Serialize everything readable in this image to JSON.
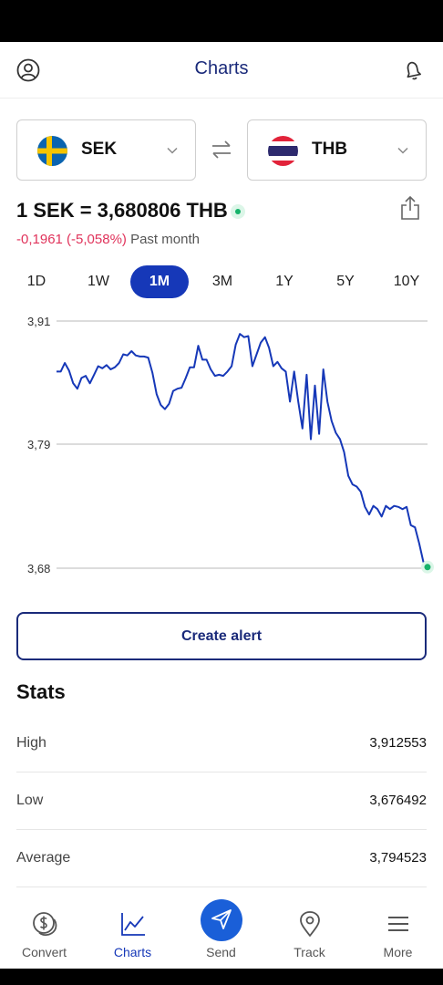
{
  "header": {
    "title": "Charts",
    "profile_icon": "profile-icon",
    "bell_icon": "bell-icon"
  },
  "from_currency": {
    "code": "SEK",
    "flag": "sweden-flag"
  },
  "to_currency": {
    "code": "THB",
    "flag": "thailand-flag"
  },
  "rate": {
    "text": "1 SEK = 3,680806 THB",
    "change": "-0,1961 (-5,058%)",
    "period": "Past month"
  },
  "ranges": [
    {
      "label": "1D",
      "active": false
    },
    {
      "label": "1W",
      "active": false
    },
    {
      "label": "1M",
      "active": true
    },
    {
      "label": "3M",
      "active": false
    },
    {
      "label": "1Y",
      "active": false
    },
    {
      "label": "5Y",
      "active": false
    },
    {
      "label": "10Y",
      "active": false
    }
  ],
  "chart_data": {
    "type": "line",
    "ylim": [
      3.68,
      3.91
    ],
    "yticks": [
      "3,91",
      "3,79",
      "3,68"
    ],
    "series": [
      {
        "values": [
          3.863,
          3.863,
          3.871,
          3.864,
          3.852,
          3.847,
          3.857,
          3.859,
          3.852,
          3.86,
          3.868,
          3.866,
          3.869,
          3.865,
          3.867,
          3.871,
          3.879,
          3.878,
          3.882,
          3.878,
          3.877,
          3.877,
          3.876,
          3.862,
          3.842,
          3.832,
          3.828,
          3.833,
          3.845,
          3.847,
          3.848,
          3.857,
          3.867,
          3.867,
          3.887,
          3.874,
          3.874,
          3.865,
          3.859,
          3.86,
          3.859,
          3.863,
          3.868,
          3.888,
          3.898,
          3.895,
          3.896,
          3.868,
          3.879,
          3.89,
          3.895,
          3.885,
          3.868,
          3.872,
          3.866,
          3.863,
          3.835,
          3.863,
          3.835,
          3.81,
          3.86,
          3.8,
          3.85,
          3.805,
          3.865,
          3.835,
          3.817,
          3.806,
          3.8,
          3.788,
          3.766,
          3.758,
          3.756,
          3.751,
          3.737,
          3.73,
          3.738,
          3.735,
          3.728,
          3.738,
          3.735,
          3.738,
          3.737,
          3.735,
          3.737,
          3.72,
          3.718,
          3.703,
          3.686,
          3.681
        ]
      }
    ]
  },
  "actions": {
    "create_alert": "Create alert"
  },
  "stats": {
    "title": "Stats",
    "rows": [
      {
        "label": "High",
        "value": "3,912553"
      },
      {
        "label": "Low",
        "value": "3,676492"
      },
      {
        "label": "Average",
        "value": "3,794523"
      }
    ]
  },
  "nav": [
    {
      "label": "Convert",
      "icon": "dollar-coins-icon",
      "active": false
    },
    {
      "label": "Charts",
      "icon": "line-chart-icon",
      "active": true
    },
    {
      "label": "Send",
      "icon": "send-icon",
      "active": false
    },
    {
      "label": "Track",
      "icon": "location-pin-icon",
      "active": false
    },
    {
      "label": "More",
      "icon": "menu-icon",
      "active": false
    }
  ],
  "colors": {
    "primary": "#1638b8",
    "title": "#1a2a7a",
    "negative": "#e0335b",
    "live": "#16b36a",
    "line": "#1638b8"
  }
}
